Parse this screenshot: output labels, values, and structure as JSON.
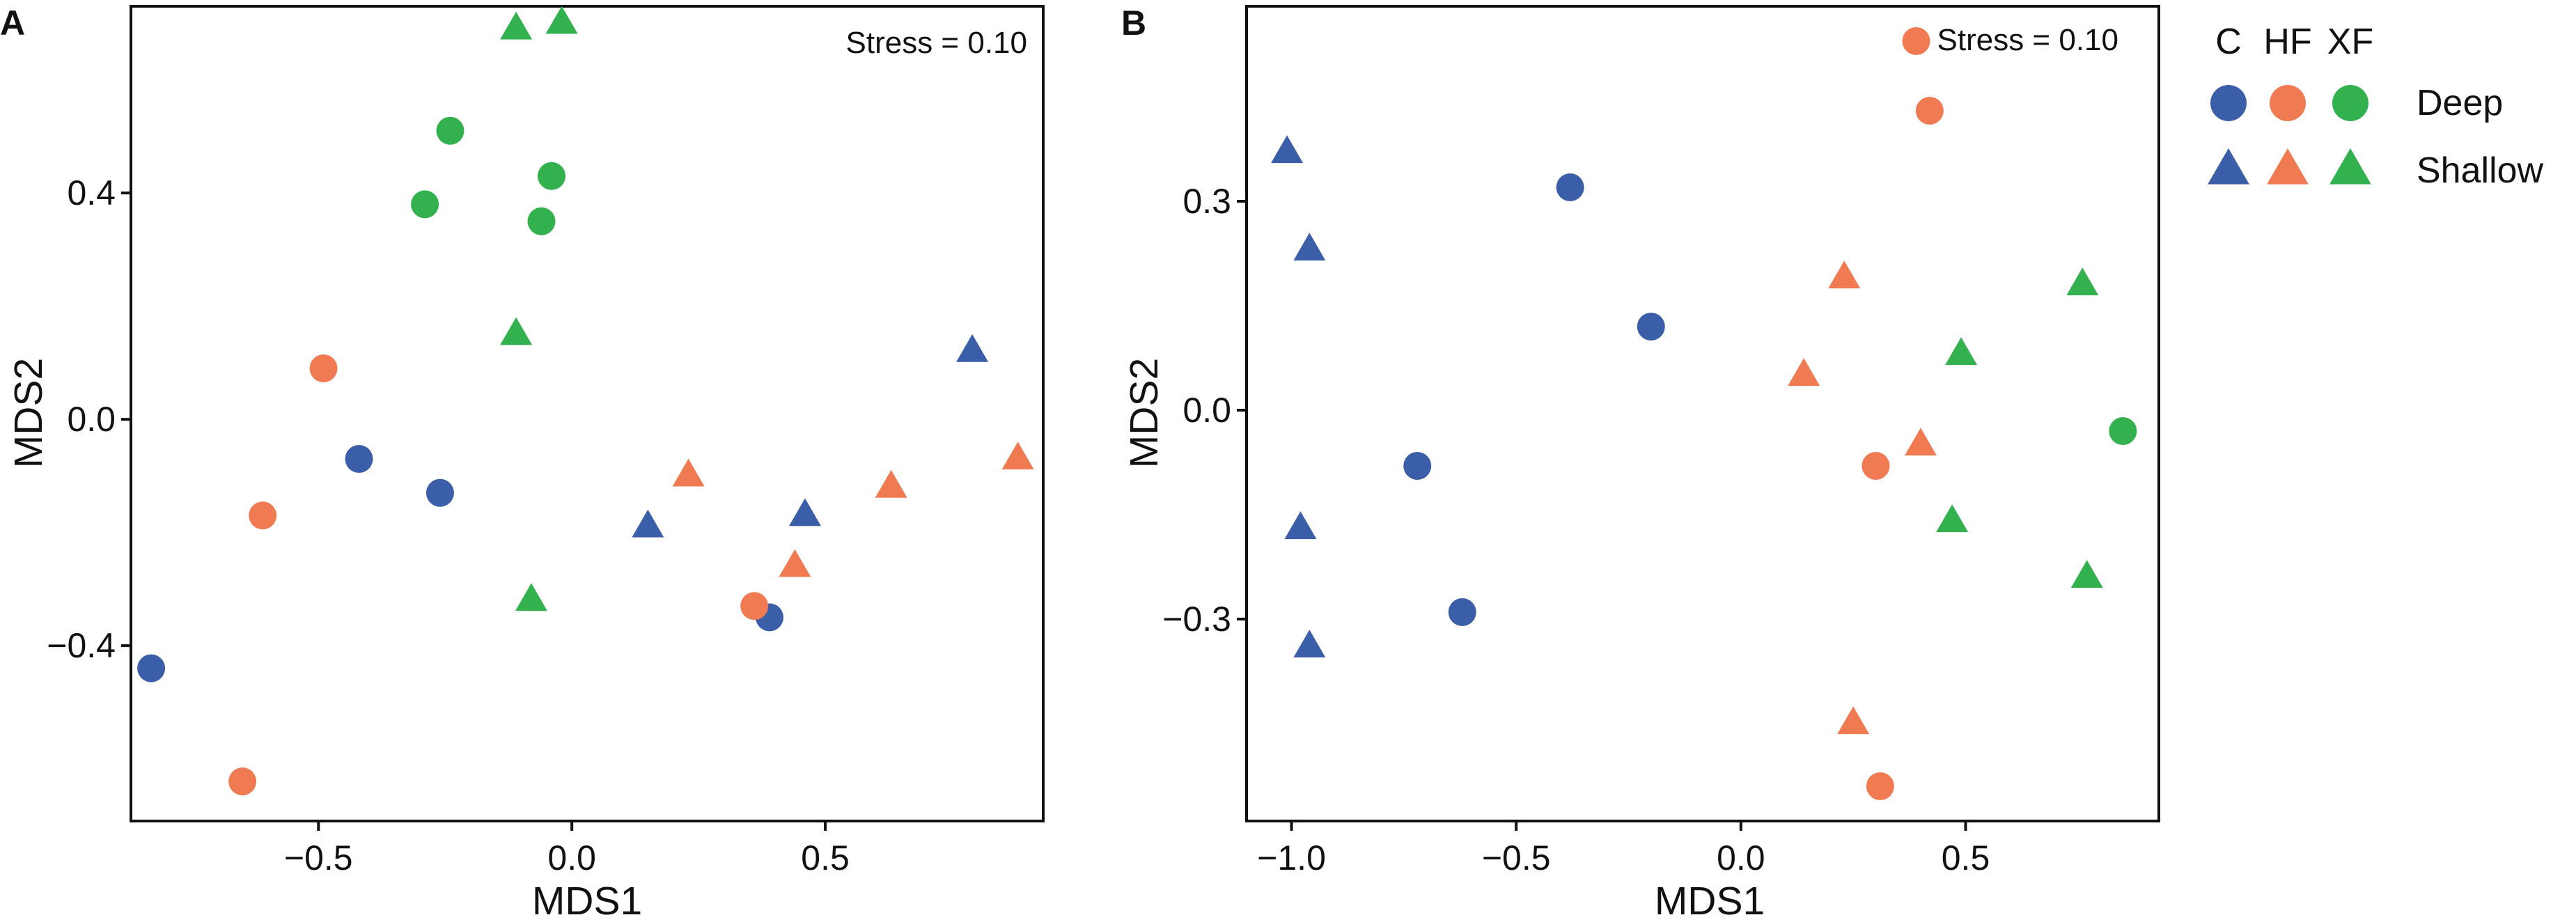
{
  "colors": {
    "C": "#3a5ea8",
    "HF": "#f07b52",
    "XF": "#33b14f"
  },
  "legend": {
    "columns": [
      "C",
      "HF",
      "XF"
    ],
    "rows": [
      {
        "label": "Deep",
        "shape": "circle"
      },
      {
        "label": "Shallow",
        "shape": "triangle"
      }
    ]
  },
  "chart_data": [
    {
      "panel": "A",
      "type": "scatter",
      "annotation": "Stress = 0.10",
      "xlabel": "MDS1",
      "ylabel": "MDS2",
      "xlim": [
        -0.87,
        0.93
      ],
      "ylim": [
        -0.71,
        0.73
      ],
      "xticks": [
        -0.5,
        0.0,
        0.5
      ],
      "xtick_labels": [
        "−0.5",
        "0.0",
        "0.5"
      ],
      "yticks": [
        -0.4,
        0.0,
        0.4
      ],
      "ytick_labels": [
        "−0.4",
        "0.0",
        "0.4"
      ],
      "points": [
        {
          "group": "C",
          "depth": "Deep",
          "x": -0.83,
          "y": -0.44
        },
        {
          "group": "C",
          "depth": "Deep",
          "x": -0.42,
          "y": -0.07
        },
        {
          "group": "C",
          "depth": "Deep",
          "x": -0.26,
          "y": -0.13
        },
        {
          "group": "C",
          "depth": "Deep",
          "x": 0.39,
          "y": -0.35
        },
        {
          "group": "C",
          "depth": "Shallow",
          "x": 0.15,
          "y": -0.19
        },
        {
          "group": "C",
          "depth": "Shallow",
          "x": 0.46,
          "y": -0.17
        },
        {
          "group": "C",
          "depth": "Shallow",
          "x": 0.79,
          "y": 0.12
        },
        {
          "group": "HF",
          "depth": "Deep",
          "x": -0.49,
          "y": 0.09
        },
        {
          "group": "HF",
          "depth": "Deep",
          "x": -0.61,
          "y": -0.17
        },
        {
          "group": "HF",
          "depth": "Deep",
          "x": 0.36,
          "y": -0.33
        },
        {
          "group": "HF",
          "depth": "Deep",
          "x": -0.65,
          "y": -0.64
        },
        {
          "group": "HF",
          "depth": "Shallow",
          "x": 0.23,
          "y": -0.1
        },
        {
          "group": "HF",
          "depth": "Shallow",
          "x": 0.44,
          "y": -0.26
        },
        {
          "group": "HF",
          "depth": "Shallow",
          "x": 0.63,
          "y": -0.12
        },
        {
          "group": "HF",
          "depth": "Shallow",
          "x": 0.88,
          "y": -0.07
        },
        {
          "group": "XF",
          "depth": "Deep",
          "x": -0.24,
          "y": 0.51
        },
        {
          "group": "XF",
          "depth": "Deep",
          "x": -0.29,
          "y": 0.38
        },
        {
          "group": "XF",
          "depth": "Deep",
          "x": -0.04,
          "y": 0.43
        },
        {
          "group": "XF",
          "depth": "Deep",
          "x": -0.06,
          "y": 0.35
        },
        {
          "group": "XF",
          "depth": "Shallow",
          "x": -0.11,
          "y": 0.69
        },
        {
          "group": "XF",
          "depth": "Shallow",
          "x": -0.02,
          "y": 0.7
        },
        {
          "group": "XF",
          "depth": "Shallow",
          "x": -0.11,
          "y": 0.15
        },
        {
          "group": "XF",
          "depth": "Shallow",
          "x": -0.08,
          "y": -0.32
        }
      ]
    },
    {
      "panel": "B",
      "type": "scatter",
      "annotation": "Stress = 0.10",
      "xlabel": "MDS1",
      "ylabel": "MDS2",
      "xlim": [
        -1.1,
        0.93
      ],
      "ylim": [
        -0.59,
        0.58
      ],
      "xticks": [
        -1.0,
        -0.5,
        0.0,
        0.5
      ],
      "xtick_labels": [
        "−1.0",
        "−0.5",
        "0.0",
        "0.5"
      ],
      "yticks": [
        -0.3,
        0.0,
        0.3
      ],
      "ytick_labels": [
        "−0.3",
        "0.0",
        "0.3"
      ],
      "points": [
        {
          "group": "C",
          "depth": "Deep",
          "x": -0.38,
          "y": 0.32
        },
        {
          "group": "C",
          "depth": "Deep",
          "x": -0.2,
          "y": 0.12
        },
        {
          "group": "C",
          "depth": "Deep",
          "x": -0.72,
          "y": -0.08
        },
        {
          "group": "C",
          "depth": "Deep",
          "x": -0.62,
          "y": -0.29
        },
        {
          "group": "C",
          "depth": "Shallow",
          "x": -1.01,
          "y": 0.37
        },
        {
          "group": "C",
          "depth": "Shallow",
          "x": -0.96,
          "y": 0.23
        },
        {
          "group": "C",
          "depth": "Shallow",
          "x": -0.98,
          "y": -0.17
        },
        {
          "group": "C",
          "depth": "Shallow",
          "x": -0.96,
          "y": -0.34
        },
        {
          "group": "HF",
          "depth": "Deep",
          "x": 0.39,
          "y": 0.53
        },
        {
          "group": "HF",
          "depth": "Deep",
          "x": 0.42,
          "y": 0.43
        },
        {
          "group": "HF",
          "depth": "Deep",
          "x": 0.3,
          "y": -0.08
        },
        {
          "group": "HF",
          "depth": "Deep",
          "x": 0.31,
          "y": -0.54
        },
        {
          "group": "HF",
          "depth": "Shallow",
          "x": 0.23,
          "y": 0.19
        },
        {
          "group": "HF",
          "depth": "Shallow",
          "x": 0.14,
          "y": 0.05
        },
        {
          "group": "HF",
          "depth": "Shallow",
          "x": 0.4,
          "y": -0.05
        },
        {
          "group": "HF",
          "depth": "Shallow",
          "x": 0.25,
          "y": -0.45
        },
        {
          "group": "XF",
          "depth": "Deep",
          "x": 0.85,
          "y": -0.03
        },
        {
          "group": "XF",
          "depth": "Shallow",
          "x": 0.76,
          "y": 0.18
        },
        {
          "group": "XF",
          "depth": "Shallow",
          "x": 0.49,
          "y": 0.08
        },
        {
          "group": "XF",
          "depth": "Shallow",
          "x": 0.47,
          "y": -0.16
        },
        {
          "group": "XF",
          "depth": "Shallow",
          "x": 0.77,
          "y": -0.24
        }
      ]
    }
  ]
}
